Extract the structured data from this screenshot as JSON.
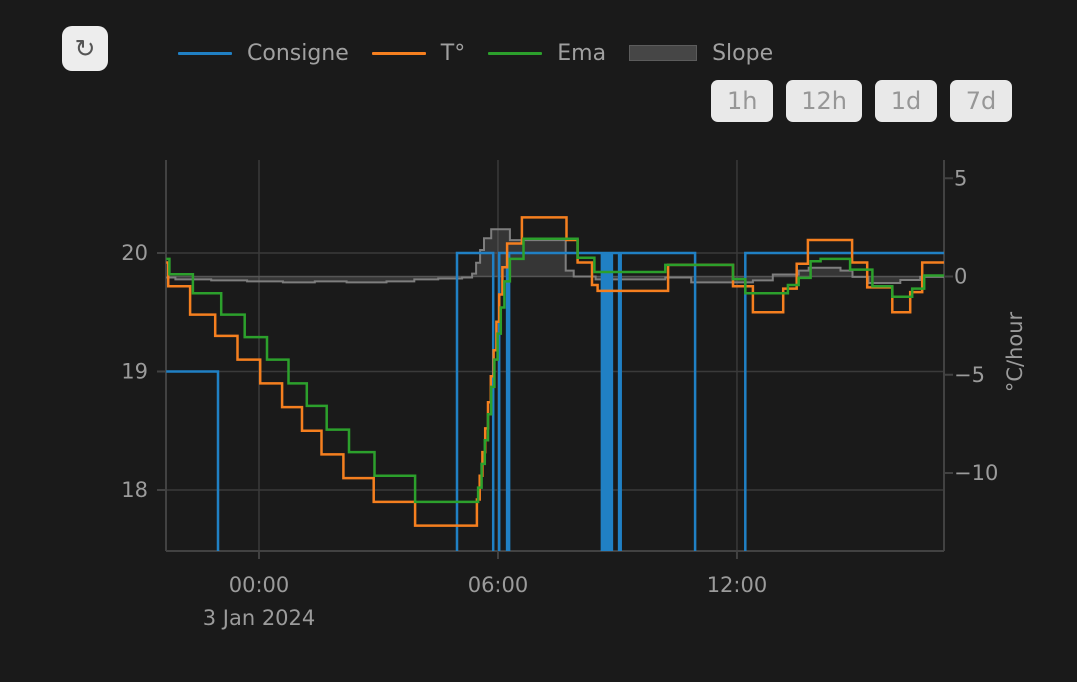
{
  "toolbar": {
    "refresh_icon": "↻"
  },
  "legend": [
    {
      "label": "Consigne",
      "color": "#2080c4",
      "swatch": "line"
    },
    {
      "label": "T°",
      "color": "#f57f1f",
      "swatch": "line"
    },
    {
      "label": "Ema",
      "color": "#2ca02c",
      "swatch": "line"
    },
    {
      "label": "Slope",
      "color": "#464646",
      "swatch": "area"
    }
  ],
  "range_buttons": [
    {
      "label": "1h"
    },
    {
      "label": "12h"
    },
    {
      "label": "1d"
    },
    {
      "label": "7d"
    }
  ],
  "chart_data": {
    "type": "line",
    "x_axis": {
      "date_label": "3 Jan 2024",
      "t_start": -2.33,
      "t_end": 17.2,
      "ticks": [
        {
          "t": 0,
          "label": "00:00"
        },
        {
          "t": 6,
          "label": "06:00"
        },
        {
          "t": 12,
          "label": "12:00"
        }
      ]
    },
    "y_left": {
      "ticks": [
        {
          "v": 20,
          "label": "20"
        },
        {
          "v": 19,
          "label": "19"
        },
        {
          "v": 18,
          "label": "18"
        }
      ],
      "range_visible": [
        17.5,
        20.78
      ]
    },
    "y_right": {
      "label": "°C/hour",
      "ticks": [
        {
          "v": 5,
          "label": "5"
        },
        {
          "v": 0,
          "label": "0"
        },
        {
          "v": -5,
          "label": "−5"
        },
        {
          "v": -10,
          "label": "−10"
        }
      ],
      "range_visible": [
        -14.9,
        5.9
      ]
    },
    "series": [
      {
        "name": "Slope",
        "axis": "right",
        "style": "step-area",
        "line_color": "#7e7e7e",
        "fill_color": "rgba(130,130,130,0.28)",
        "width": 2,
        "end": 17.2,
        "points": [
          [
            -2.33,
            -0.05
          ],
          [
            -2.1,
            -0.15
          ],
          [
            -1.2,
            -0.2
          ],
          [
            -0.3,
            -0.25
          ],
          [
            0.6,
            -0.3
          ],
          [
            1.4,
            -0.25
          ],
          [
            2.2,
            -0.3
          ],
          [
            3.2,
            -0.25
          ],
          [
            3.9,
            -0.15
          ],
          [
            4.5,
            -0.1
          ],
          [
            5.1,
            -0.05
          ],
          [
            5.35,
            0.15
          ],
          [
            5.45,
            0.7
          ],
          [
            5.55,
            1.35
          ],
          [
            5.65,
            1.95
          ],
          [
            5.83,
            2.4
          ],
          [
            6.3,
            1.85
          ],
          [
            7.7,
            0.3
          ],
          [
            7.9,
            0.0
          ],
          [
            8.45,
            -0.15
          ],
          [
            10.2,
            -0.05
          ],
          [
            10.85,
            -0.3
          ],
          [
            12.4,
            -0.2
          ],
          [
            12.9,
            0.1
          ],
          [
            13.55,
            0.3
          ],
          [
            13.8,
            0.45
          ],
          [
            14.6,
            0.3
          ],
          [
            14.9,
            -0.02
          ],
          [
            15.3,
            -0.33
          ],
          [
            16.1,
            -0.18
          ],
          [
            16.6,
            -0.02
          ]
        ]
      },
      {
        "name": "Consigne",
        "axis": "left",
        "style": "step-line",
        "line_color": "#2080c4",
        "width": 2.5,
        "end": 17.2,
        "points": [
          [
            -2.33,
            19
          ],
          [
            -1.03,
            17
          ],
          [
            4.97,
            20
          ],
          [
            5.88,
            17
          ],
          [
            6.03,
            20
          ],
          [
            6.23,
            17
          ],
          [
            6.28,
            20
          ],
          [
            8.61,
            17
          ],
          [
            8.64,
            20
          ],
          [
            8.68,
            17
          ],
          [
            8.71,
            20
          ],
          [
            8.75,
            17
          ],
          [
            8.78,
            20
          ],
          [
            8.83,
            17
          ],
          [
            8.86,
            20
          ],
          [
            9.04,
            17
          ],
          [
            9.08,
            20
          ],
          [
            10.95,
            17
          ],
          [
            12.21,
            20
          ]
        ]
      },
      {
        "name": "T°",
        "axis": "left",
        "style": "step-line",
        "line_color": "#f57f1f",
        "width": 2.5,
        "end": 17.2,
        "points": [
          [
            -2.33,
            19.92
          ],
          [
            -2.28,
            19.72
          ],
          [
            -1.73,
            19.48
          ],
          [
            -1.1,
            19.3
          ],
          [
            -0.54,
            19.1
          ],
          [
            0.03,
            18.9
          ],
          [
            0.58,
            18.7
          ],
          [
            1.08,
            18.5
          ],
          [
            1.57,
            18.3
          ],
          [
            2.12,
            18.1
          ],
          [
            2.88,
            17.9
          ],
          [
            3.92,
            17.7
          ],
          [
            5.47,
            17.92
          ],
          [
            5.54,
            18.12
          ],
          [
            5.61,
            18.32
          ],
          [
            5.68,
            18.52
          ],
          [
            5.75,
            18.74
          ],
          [
            5.82,
            18.96
          ],
          [
            5.89,
            19.18
          ],
          [
            5.96,
            19.42
          ],
          [
            6.03,
            19.65
          ],
          [
            6.11,
            19.88
          ],
          [
            6.23,
            20.08
          ],
          [
            6.6,
            20.3
          ],
          [
            7.72,
            20.11
          ],
          [
            8.0,
            19.92
          ],
          [
            8.36,
            19.73
          ],
          [
            8.5,
            19.68
          ],
          [
            10.27,
            19.9
          ],
          [
            11.9,
            19.72
          ],
          [
            12.4,
            19.5
          ],
          [
            13.16,
            19.7
          ],
          [
            13.5,
            19.91
          ],
          [
            13.78,
            20.11
          ],
          [
            14.89,
            19.92
          ],
          [
            15.27,
            19.71
          ],
          [
            15.9,
            19.5
          ],
          [
            16.35,
            19.67
          ],
          [
            16.65,
            19.92
          ]
        ]
      },
      {
        "name": "Ema",
        "axis": "left",
        "style": "step-line",
        "line_color": "#2ca02c",
        "width": 2.5,
        "end": 17.2,
        "points": [
          [
            -2.33,
            19.95
          ],
          [
            -2.25,
            19.82
          ],
          [
            -1.66,
            19.66
          ],
          [
            -0.95,
            19.48
          ],
          [
            -0.36,
            19.29
          ],
          [
            0.2,
            19.1
          ],
          [
            0.74,
            18.9
          ],
          [
            1.2,
            18.71
          ],
          [
            1.7,
            18.51
          ],
          [
            2.26,
            18.32
          ],
          [
            2.9,
            18.12
          ],
          [
            3.92,
            17.9
          ],
          [
            5.5,
            18.02
          ],
          [
            5.59,
            18.22
          ],
          [
            5.67,
            18.42
          ],
          [
            5.75,
            18.64
          ],
          [
            5.83,
            18.87
          ],
          [
            5.91,
            19.1
          ],
          [
            5.99,
            19.32
          ],
          [
            6.07,
            19.54
          ],
          [
            6.16,
            19.76
          ],
          [
            6.3,
            19.95
          ],
          [
            6.64,
            20.12
          ],
          [
            8.0,
            19.96
          ],
          [
            8.42,
            19.84
          ],
          [
            10.2,
            19.9
          ],
          [
            11.9,
            19.78
          ],
          [
            12.21,
            19.66
          ],
          [
            13.28,
            19.73
          ],
          [
            13.55,
            19.79
          ],
          [
            13.85,
            19.93
          ],
          [
            14.1,
            19.95
          ],
          [
            14.84,
            19.86
          ],
          [
            15.4,
            19.72
          ],
          [
            15.9,
            19.63
          ],
          [
            16.4,
            19.7
          ],
          [
            16.7,
            19.81
          ]
        ]
      }
    ]
  }
}
